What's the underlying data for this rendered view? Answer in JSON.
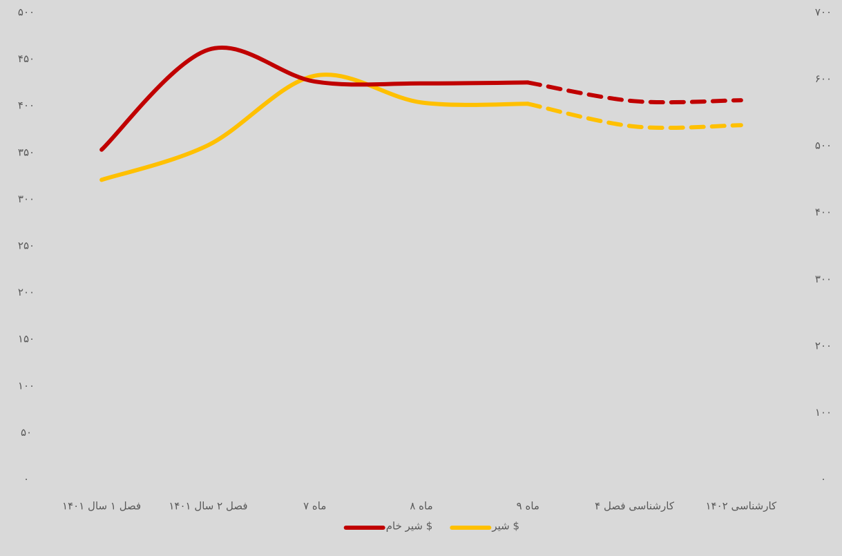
{
  "chart_data": {
    "type": "line",
    "categories": [
      "فصل ۱ سال ۱۴۰۱",
      "فصل ۲ سال ۱۴۰۱",
      "ماه ۷",
      "ماه ۸",
      "ماه ۹",
      "کارشناسی فصل ۴",
      "کارشناسی ۱۴۰۲"
    ],
    "series": [
      {
        "name": "شیر $",
        "color": "#ffc000",
        "axis": "y2",
        "values": [
          449,
          501,
          605,
          565,
          563,
          529,
          531
        ]
      },
      {
        "name": "شیر خام $",
        "color": "#c00000",
        "values": [
          353,
          460,
          426,
          424,
          425,
          405,
          406
        ]
      }
    ],
    "dash_from_index": 4,
    "smooth": true,
    "ylim": [
      0,
      500
    ],
    "yticks": [
      {
        "value": 0,
        "label": "۰"
      },
      {
        "value": 50,
        "label": "۵۰"
      },
      {
        "value": 100,
        "label": "۱۰۰"
      },
      {
        "value": 150,
        "label": "۱۵۰"
      },
      {
        "value": 200,
        "label": "۲۰۰"
      },
      {
        "value": 250,
        "label": "۲۵۰"
      },
      {
        "value": 300,
        "label": "۳۰۰"
      },
      {
        "value": 350,
        "label": "۳۵۰"
      },
      {
        "value": 400,
        "label": "۴۰۰"
      },
      {
        "value": 450,
        "label": "۴۵۰"
      },
      {
        "value": 500,
        "label": "۵۰۰"
      }
    ],
    "y2lim": [
      0,
      700
    ],
    "y2ticks": [
      {
        "value": 0,
        "label": "۰"
      },
      {
        "value": 100,
        "label": "۱۰۰"
      },
      {
        "value": 200,
        "label": "۲۰۰"
      },
      {
        "value": 300,
        "label": "۳۰۰"
      },
      {
        "value": 400,
        "label": "۴۰۰"
      },
      {
        "value": 500,
        "label": "۵۰۰"
      },
      {
        "value": 600,
        "label": "۶۰۰"
      },
      {
        "value": 700,
        "label": "۷۰۰"
      }
    ],
    "legend": "bottom"
  }
}
